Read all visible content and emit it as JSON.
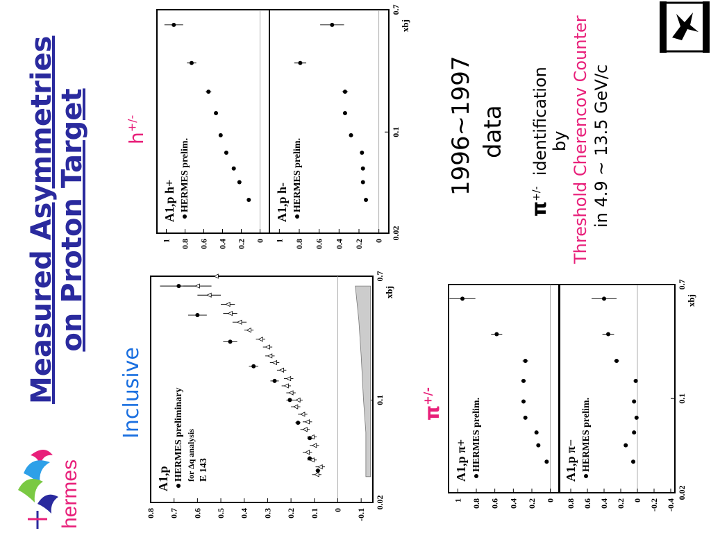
{
  "slide": {
    "title_line1": "Measured Asymmetries",
    "title_line2": "on Proton Target",
    "title_color": "#2a2a9e",
    "inclusive_label": "Inclusive",
    "inclusive_color": "#1a6fe0",
    "hadron_label": "h",
    "hadron_sup": "+/-",
    "pion_label": "π",
    "pion_sup": "+/-",
    "accent_color": "#e8207a",
    "data_years": "1996~1997",
    "data_word": "data",
    "pid_symbol": "π",
    "pid_sup": "+/-",
    "pid_text": "identification",
    "by_text": "by",
    "detector_text": "Threshold Cherencov Counter",
    "momentum_text": "in 4.9 ~ 13.5 GeV/c",
    "logo_text": "hermes",
    "logo_mark": "swallow-logo"
  },
  "chart_data": [
    {
      "type": "scatter",
      "id": "inclusive",
      "ylabel": "A1,p",
      "xlabel": "xbj",
      "xscale": "log",
      "xlim": [
        0.02,
        0.7
      ],
      "ylim": [
        -0.15,
        0.8
      ],
      "xticks": [
        "0.02",
        "0.1",
        "0.7"
      ],
      "yticks": [
        "-0.1",
        "0",
        "0.1",
        "0.2",
        "0.3",
        "0.4",
        "0.5",
        "0.6",
        "0.7",
        "0.8"
      ],
      "legend": [
        "HERMES preliminary",
        "for Δq analysis",
        "E 143"
      ],
      "series": [
        {
          "name": "HERMES preliminary",
          "marker": "filled-circle",
          "x": [
            0.033,
            0.04,
            0.055,
            0.07,
            0.1,
            0.135,
            0.17,
            0.25,
            0.38,
            0.6
          ],
          "y": [
            0.085,
            0.12,
            0.12,
            0.17,
            0.205,
            0.27,
            0.36,
            0.46,
            0.6,
            0.68
          ],
          "err": [
            0.01,
            0.01,
            0.01,
            0.012,
            0.015,
            0.018,
            0.02,
            0.03,
            0.04,
            0.08
          ]
        },
        {
          "name": "E 143",
          "marker": "open-triangle",
          "x": [
            0.031,
            0.035,
            0.039,
            0.044,
            0.049,
            0.056,
            0.063,
            0.071,
            0.08,
            0.09,
            0.1,
            0.112,
            0.125,
            0.14,
            0.16,
            0.18,
            0.2,
            0.23,
            0.26,
            0.3,
            0.34,
            0.39,
            0.45,
            0.52,
            0.6,
            0.7
          ],
          "y": [
            0.09,
            0.075,
            0.11,
            0.13,
            0.1,
            0.11,
            0.14,
            0.13,
            0.15,
            0.18,
            0.17,
            0.2,
            0.22,
            0.21,
            0.24,
            0.27,
            0.29,
            0.3,
            0.33,
            0.38,
            0.42,
            0.46,
            0.47,
            0.55,
            0.6,
            0.52
          ],
          "err": [
            0.02,
            0.02,
            0.02,
            0.02,
            0.02,
            0.02,
            0.02,
            0.02,
            0.02,
            0.02,
            0.02,
            0.02,
            0.02,
            0.02,
            0.02,
            0.02,
            0.02,
            0.02,
            0.02,
            0.02,
            0.03,
            0.03,
            0.03,
            0.05,
            0.06,
            0.08
          ]
        },
        {
          "name": "systematic band",
          "marker": "band",
          "x": [
            0.03,
            0.06,
            0.1,
            0.2,
            0.35,
            0.6
          ],
          "y": [
            -0.12,
            -0.12,
            -0.11,
            -0.1,
            -0.09,
            -0.075
          ]
        }
      ]
    },
    {
      "type": "scatter",
      "id": "h-plus",
      "ylabel": "A1,p h+",
      "xlabel": "xbj",
      "xscale": "log",
      "xlim": [
        0.02,
        0.7
      ],
      "ylim": [
        -0.1,
        1.1
      ],
      "xticks": [
        "0.02",
        "0.1",
        "0.7"
      ],
      "yticks": [
        "0",
        "0.2",
        "0.4",
        "0.6",
        "0.8",
        "1"
      ],
      "legend": [
        "HERMES prelim."
      ],
      "series": [
        {
          "name": "HERMES prelim.",
          "marker": "filled-circle",
          "x": [
            0.034,
            0.045,
            0.056,
            0.072,
            0.095,
            0.135,
            0.19,
            0.3,
            0.55
          ],
          "y": [
            0.12,
            0.22,
            0.28,
            0.36,
            0.42,
            0.47,
            0.55,
            0.73,
            0.92
          ],
          "err": [
            0.01,
            0.01,
            0.015,
            0.015,
            0.02,
            0.02,
            0.03,
            0.05,
            0.1
          ]
        }
      ]
    },
    {
      "type": "scatter",
      "id": "h-minus",
      "ylabel": "A1,p h-",
      "xlabel": "xbj",
      "xscale": "log",
      "xlim": [
        0.02,
        0.7
      ],
      "ylim": [
        -0.1,
        1.1
      ],
      "xticks": [
        "0.02",
        "0.1",
        "0.7"
      ],
      "yticks": [
        "0",
        "0.2",
        "0.4",
        "0.6",
        "0.8",
        "1"
      ],
      "legend": [
        "HERMES prelim."
      ],
      "series": [
        {
          "name": "HERMES prelim.",
          "marker": "filled-circle",
          "x": [
            0.034,
            0.045,
            0.056,
            0.072,
            0.095,
            0.135,
            0.19,
            0.3,
            0.55
          ],
          "y": [
            0.13,
            0.16,
            0.16,
            0.17,
            0.28,
            0.34,
            0.34,
            0.79,
            0.47
          ],
          "err": [
            0.01,
            0.01,
            0.015,
            0.015,
            0.02,
            0.02,
            0.03,
            0.06,
            0.12
          ]
        }
      ]
    },
    {
      "type": "scatter",
      "id": "pi-plus",
      "ylabel": "A1,p π+",
      "xlabel": "xbj",
      "xscale": "log",
      "xlim": [
        0.02,
        0.7
      ],
      "ylim": [
        -0.1,
        1.1
      ],
      "xticks": [
        "0.02",
        "0.1",
        "0.7"
      ],
      "yticks": [
        "0",
        "0.2",
        "0.4",
        "0.6",
        "0.8",
        "1"
      ],
      "legend": [
        "HERMES prelim."
      ],
      "series": [
        {
          "name": "HERMES prelim.",
          "marker": "filled-circle",
          "x": [
            0.034,
            0.045,
            0.056,
            0.072,
            0.095,
            0.135,
            0.19,
            0.3,
            0.55
          ],
          "y": [
            0.04,
            0.13,
            0.15,
            0.27,
            0.29,
            0.29,
            0.27,
            0.58,
            0.95
          ],
          "err": [
            0.01,
            0.015,
            0.02,
            0.02,
            0.02,
            0.025,
            0.03,
            0.06,
            0.14
          ]
        }
      ]
    },
    {
      "type": "scatter",
      "id": "pi-minus",
      "ylabel": "A1,p π−",
      "xlabel": "xbj",
      "xscale": "log",
      "xlim": [
        0.02,
        0.7
      ],
      "ylim": [
        -0.45,
        0.95
      ],
      "xticks": [
        "0.02",
        "0.1",
        "0.7"
      ],
      "yticks": [
        "-0.4",
        "-0.2",
        "0",
        "0.2",
        "0.4",
        "0.6",
        "0.8"
      ],
      "legend": [
        "HERMES prelim."
      ],
      "series": [
        {
          "name": "HERMES prelim.",
          "marker": "filled-circle",
          "x": [
            0.034,
            0.045,
            0.056,
            0.072,
            0.095,
            0.135,
            0.19,
            0.3,
            0.55
          ],
          "y": [
            0.05,
            0.14,
            0.04,
            0.01,
            0.04,
            0.02,
            0.25,
            0.35,
            0.4
          ],
          "err": [
            0.01,
            0.015,
            0.02,
            0.02,
            0.02,
            0.025,
            0.03,
            0.07,
            0.15
          ]
        }
      ]
    }
  ]
}
